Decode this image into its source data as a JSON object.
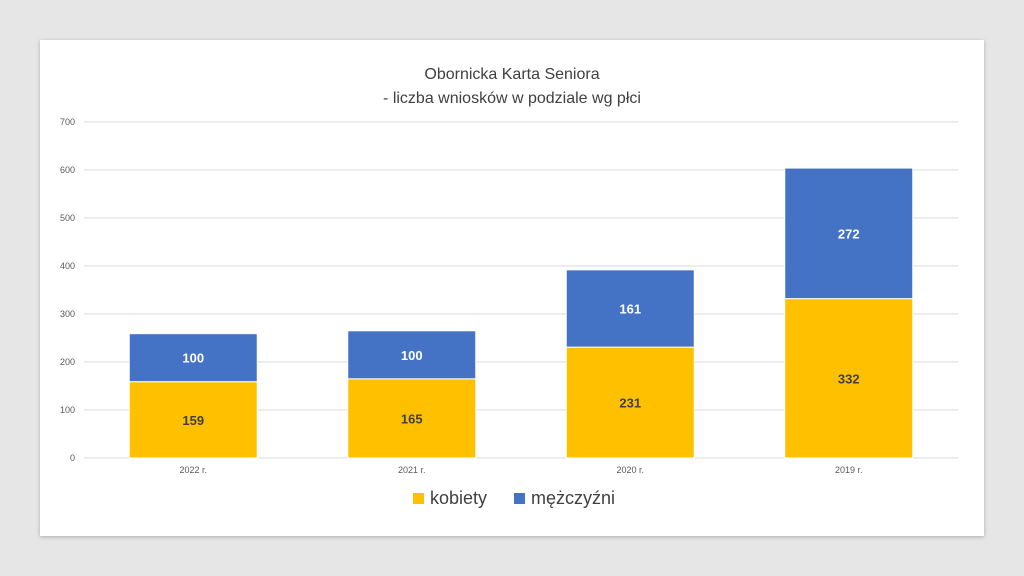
{
  "chart_data": {
    "type": "bar",
    "stacked": true,
    "title": "Obornicka Karta Seniora",
    "subtitle": "- liczba wniosków w podziale wg płci",
    "categories": [
      "2022 r.",
      "2021 r.",
      "2020 r.",
      "2019 r."
    ],
    "series": [
      {
        "name": "kobiety",
        "values": [
          159,
          165,
          231,
          332
        ],
        "color": "#ffc000",
        "label_color": "#404040"
      },
      {
        "name": "mężczyźni",
        "values": [
          100,
          100,
          161,
          272
        ],
        "color": "#4472c4",
        "label_color": "#ffffff"
      }
    ],
    "ylim": [
      0,
      700
    ],
    "yticks": [
      0,
      100,
      200,
      300,
      400,
      500,
      600,
      700
    ],
    "grid": true,
    "legend_position": "bottom"
  },
  "colors": {
    "background": "#e7e6e6",
    "slide": "#ffffff",
    "gridline": "#d9d9d9"
  }
}
